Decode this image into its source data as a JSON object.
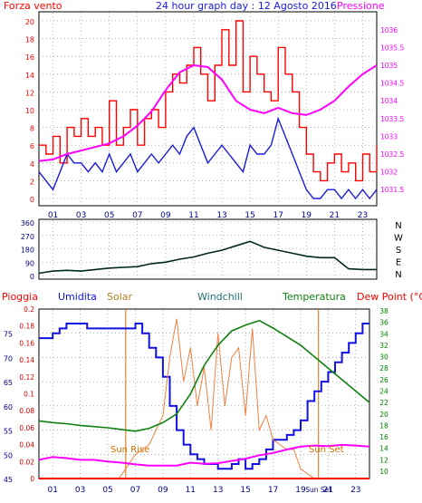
{
  "header": {
    "left_label": "Forza vento",
    "title": "24 hour graph day : 12 Agosto 2016",
    "right_label": "Pressione"
  },
  "colors": {
    "wind_gust": "#ff0000",
    "wind_avg": "#1a1adc",
    "pressure": "#ff00ff",
    "direction": "#002a14",
    "humidity": "#1010e0",
    "solar": "#f08040",
    "temperature": "#108010",
    "dewpoint": "#ff00ff",
    "rain": "#ff0000",
    "axis_humidity": "#000080",
    "axis_rain": "#cc0000",
    "axis_temp": "#008000",
    "sun_event": "#d07000"
  },
  "x_axis": {
    "ticks": [
      "01",
      "03",
      "05",
      "07",
      "09",
      "11",
      "13",
      "15",
      "17",
      "19",
      "21",
      "23"
    ],
    "ticks_bottom": [
      "01",
      "03",
      "05",
      "07",
      "09",
      "11",
      "13",
      "15",
      "17",
      "19",
      "Sun Set",
      "21",
      "23"
    ]
  },
  "chart_data": [
    {
      "type": "line",
      "title": "24 hour graph day : 12 Agosto 2016",
      "ylabel": "Forza vento",
      "y2label": "Pressione",
      "ylim": [
        0,
        20
      ],
      "y_ticks": [
        "0",
        "2",
        "4",
        "6",
        "8",
        "10",
        "12",
        "14",
        "16",
        "18",
        "20"
      ],
      "y2lim": [
        1031.25,
        1036.25
      ],
      "y2_ticks": [
        "1031.5",
        "1032",
        "1032.5",
        "1033",
        "1033.5",
        "1034",
        "1034.5",
        "1035",
        "1035.5",
        "1036"
      ],
      "grid": true,
      "series": [
        {
          "name": "wind_gust",
          "axis": "left",
          "x": [
            0,
            0.5,
            1,
            1.5,
            2,
            2.5,
            3,
            3.5,
            4,
            4.5,
            5,
            5.5,
            6,
            6.5,
            7,
            7.5,
            8,
            8.5,
            9,
            9.5,
            10,
            10.5,
            11,
            11.5,
            12,
            12.5,
            13,
            13.5,
            14,
            14.5,
            15,
            15.5,
            16,
            16.5,
            17,
            17.5,
            18,
            18.5,
            19,
            19.5,
            20,
            20.5,
            21,
            21.5,
            22,
            22.5,
            23,
            23.5,
            24
          ],
          "values": [
            6,
            5,
            7,
            4,
            8,
            7,
            9,
            7,
            8,
            6,
            11,
            6,
            8,
            10,
            6,
            9,
            10,
            8,
            12,
            14,
            13,
            15,
            17,
            14,
            11,
            15,
            19,
            15,
            20,
            12,
            16,
            14,
            12,
            11,
            17,
            14,
            12,
            8,
            5,
            3,
            2,
            4,
            5,
            3,
            4,
            2,
            5,
            3,
            6
          ]
        },
        {
          "name": "wind_avg",
          "axis": "left",
          "x": [
            0,
            0.5,
            1,
            1.5,
            2,
            2.5,
            3,
            3.5,
            4,
            4.5,
            5,
            5.5,
            6,
            6.5,
            7,
            7.5,
            8,
            8.5,
            9,
            9.5,
            10,
            10.5,
            11,
            11.5,
            12,
            12.5,
            13,
            13.5,
            14,
            14.5,
            15,
            15.5,
            16,
            16.5,
            17,
            17.5,
            18,
            18.5,
            19,
            19.5,
            20,
            20.5,
            21,
            21.5,
            22,
            22.5,
            23,
            23.5,
            24
          ],
          "values": [
            3,
            2,
            1,
            3,
            5,
            4,
            4,
            3,
            4,
            3,
            5,
            3,
            4,
            5,
            3,
            4,
            5,
            4,
            5,
            6,
            5,
            7,
            8,
            6,
            4,
            5,
            6,
            5,
            4,
            3,
            6,
            5,
            5,
            6,
            9,
            7,
            5,
            3,
            1,
            0,
            0,
            1,
            1,
            0,
            1,
            0,
            1,
            0,
            1
          ]
        },
        {
          "name": "pressure",
          "axis": "right",
          "x": [
            0,
            1,
            2,
            3,
            4,
            5,
            6,
            7,
            8,
            9,
            10,
            11,
            12,
            13,
            14,
            15,
            16,
            17,
            18,
            19,
            20,
            21,
            22,
            23,
            24
          ],
          "values": [
            1032.3,
            1032.35,
            1032.5,
            1032.6,
            1032.7,
            1032.8,
            1033.0,
            1033.3,
            1033.7,
            1034.3,
            1034.8,
            1035.0,
            1034.95,
            1034.6,
            1034.0,
            1033.75,
            1033.65,
            1033.8,
            1033.65,
            1033.6,
            1033.75,
            1034.0,
            1034.4,
            1034.75,
            1035.0
          ]
        }
      ]
    },
    {
      "type": "line",
      "ylim": [
        0,
        360
      ],
      "y_ticks": [
        "0",
        "90",
        "180",
        "270",
        "360"
      ],
      "y2_ticks": [
        "N",
        "W",
        "S",
        "E",
        "N"
      ],
      "grid": true,
      "series": [
        {
          "name": "wind_direction",
          "x": [
            0,
            1,
            2,
            3,
            4,
            5,
            6,
            7,
            8,
            9,
            10,
            11,
            12,
            13,
            14,
            15,
            16,
            17,
            18,
            19,
            20,
            21,
            22,
            23,
            24
          ],
          "values": [
            15,
            30,
            35,
            30,
            40,
            50,
            55,
            60,
            80,
            90,
            110,
            125,
            150,
            170,
            200,
            230,
            190,
            170,
            150,
            130,
            120,
            120,
            45,
            40,
            40
          ]
        }
      ]
    },
    {
      "type": "line",
      "y_humidity_ticks": [
        "45",
        "50",
        "55",
        "60",
        "65",
        "70",
        "75"
      ],
      "y_humidity_lim": [
        45,
        80
      ],
      "y_rain_ticks": [
        "0",
        "0.02",
        "0.04",
        "0.06",
        "0.08",
        "0.1",
        "0.12",
        "0.14",
        "0.16",
        "0.18",
        "0.2"
      ],
      "y_rain_lim": [
        0,
        0.2
      ],
      "y_temp_ticks": [
        "10",
        "12",
        "14",
        "16",
        "18",
        "20",
        "22",
        "24",
        "26",
        "28",
        "30",
        "32",
        "34",
        "36",
        "38"
      ],
      "y_temp_lim": [
        10,
        38
      ],
      "legend": [
        "Pioggia",
        "Umidita",
        "Solar",
        "Windchill",
        "Temperatura",
        "Dew Point (°C)"
      ],
      "annotations": [
        "Sun Rise",
        "Sun Set"
      ],
      "grid": true,
      "series": [
        {
          "name": "humidity",
          "axis": "humidity",
          "x": [
            0,
            0.5,
            1,
            1.5,
            2,
            2.5,
            3,
            3.5,
            4,
            4.5,
            5,
            5.5,
            6,
            6.5,
            7,
            7.5,
            8,
            8.5,
            9,
            9.5,
            10,
            10.5,
            11,
            11.5,
            12,
            12.5,
            13,
            13.5,
            14,
            14.5,
            15,
            15.5,
            16,
            16.5,
            17,
            17.5,
            18,
            18.5,
            19,
            19.5,
            20,
            20.5,
            21,
            21.5,
            22,
            22.5,
            23,
            23.5,
            24
          ],
          "values": [
            74,
            74,
            75,
            76,
            77,
            77,
            77,
            76,
            76,
            76,
            76,
            76,
            76,
            76,
            77,
            75,
            72,
            70,
            66,
            60,
            55,
            52,
            50,
            49,
            48,
            48,
            47,
            47,
            48,
            49,
            47,
            48,
            49,
            51,
            53,
            53,
            54,
            55,
            57,
            61,
            63,
            65,
            67,
            69,
            71,
            73,
            75,
            77,
            77
          ]
        },
        {
          "name": "solar",
          "axis": "humidity",
          "x": [
            0,
            5.8,
            6.3,
            7,
            8,
            8.5,
            9,
            9.5,
            10,
            10.5,
            11,
            11.5,
            12,
            12.5,
            13,
            13.5,
            14,
            14.5,
            15,
            15.5,
            16,
            16.5,
            17,
            17.5,
            18,
            18.5,
            19,
            19.5,
            20,
            20.5,
            24
          ],
          "values": [
            45,
            45,
            47,
            50,
            52,
            55,
            58,
            70,
            78,
            65,
            72,
            60,
            68,
            55,
            75,
            60,
            70,
            72,
            58,
            76,
            55,
            58,
            53,
            52,
            51,
            51,
            47,
            46,
            45,
            45,
            45
          ]
        },
        {
          "name": "temperature",
          "axis": "temp",
          "x": [
            0,
            1,
            2,
            3,
            4,
            5,
            6,
            7,
            8,
            9,
            10,
            11,
            12,
            13,
            14,
            15,
            16,
            17,
            18,
            19,
            20,
            21,
            22,
            23,
            24
          ],
          "values": [
            18.8,
            18.5,
            18.3,
            18.0,
            17.8,
            17.6,
            17.3,
            17.0,
            17.5,
            18.5,
            20.0,
            23.5,
            28.5,
            32.0,
            34.5,
            35.5,
            36.3,
            35.0,
            33.5,
            32.0,
            30.0,
            28.0,
            26.0,
            24.0,
            22.0
          ]
        },
        {
          "name": "dewpoint",
          "axis": "temp",
          "x": [
            0,
            1,
            2,
            3,
            4,
            5,
            6,
            7,
            8,
            9,
            10,
            11,
            12,
            13,
            14,
            15,
            16,
            17,
            18,
            19,
            20,
            21,
            22,
            23,
            24
          ],
          "values": [
            12.0,
            12.5,
            12.3,
            12.0,
            12.0,
            11.7,
            11.5,
            11.2,
            11.0,
            11.0,
            11.0,
            11.5,
            11.3,
            11.4,
            11.8,
            12.2,
            12.8,
            13.2,
            13.8,
            14.3,
            14.5,
            14.4,
            14.6,
            14.5,
            14.3
          ]
        },
        {
          "name": "rain",
          "axis": "rain",
          "x": [
            0,
            24
          ],
          "values": [
            0,
            0
          ]
        }
      ]
    }
  ]
}
